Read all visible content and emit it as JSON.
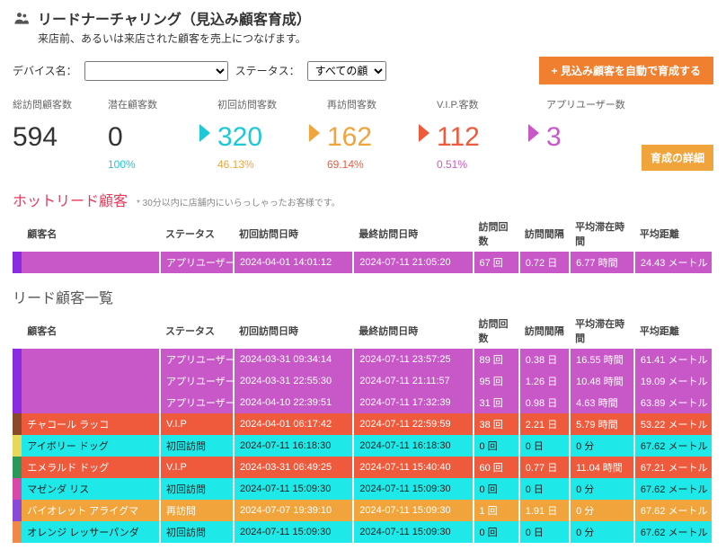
{
  "header": {
    "title": "リードナーチャリング（見込み顧客育成）",
    "subtitle": "来店前、あるいは来店された顧客を売上につなげます。"
  },
  "filters": {
    "device_label": "デバイス名：",
    "status_label": "ステータス：",
    "status_selected": "すべての顧客",
    "cta": "+ 見込み顧客を自動で育成する"
  },
  "funnel": {
    "items": [
      {
        "label": "総訪問顧客数",
        "value": "594",
        "color": "#333",
        "pct": "",
        "pct_color": ""
      },
      {
        "label": "潜在顧客数",
        "value": "0",
        "color": "#333",
        "pct": "100%",
        "pct_color": "#1ec8d8"
      },
      {
        "label": "初回訪問客数",
        "value": "320",
        "color": "#1ec8d8",
        "pct": "46.13%",
        "pct_color": "#f2a43c"
      },
      {
        "label": "再訪問客数",
        "value": "162",
        "color": "#f2a43c",
        "pct": "69.14%",
        "pct_color": "#f05a3c"
      },
      {
        "label": "V.I.P.客数",
        "value": "112",
        "color": "#f05a3c",
        "pct": "0.51%",
        "pct_color": "#c858c8"
      },
      {
        "label": "アプリユーザー数",
        "value": "3",
        "color": "#c858c8",
        "pct": "",
        "pct_color": ""
      }
    ],
    "arrow_colors": [
      "#1ec8d8",
      "#f2a43c",
      "#f05a3c",
      "#c858c8"
    ],
    "detail_btn": "育成の詳細"
  },
  "hot": {
    "title": "ホットリード顧客",
    "note": "* 30分以内に店舗内にいらっしゃったお客様です。",
    "headers": [
      "顧客名",
      "ステータス",
      "初回訪問日時",
      "最終訪問日時",
      "訪問回数",
      "訪問間隔",
      "平均滞在時間",
      "平均距離"
    ],
    "rows": [
      {
        "marker": "#8a2be2",
        "bg": "#c858c8",
        "name": "",
        "status": "アプリユーザー",
        "first": "2024-04-01 14:01:12",
        "last": "2024-07-11 21:05:20",
        "visits": "67 回",
        "interval": "0.72 日",
        "stay": "6.77 時間",
        "dist": "24.43 メートル"
      }
    ]
  },
  "list": {
    "title": "リード顧客一覧",
    "headers": [
      "顧客名",
      "ステータス",
      "初回訪問日時",
      "最終訪問日時",
      "訪問回数",
      "訪問間隔",
      "平均滞在時間",
      "平均距離"
    ],
    "rows": [
      {
        "marker": "#8a2be2",
        "bg": "#c858c8",
        "name": "",
        "status": "アプリユーザー",
        "first": "2024-03-31 09:34:14",
        "last": "2024-07-11 23:57:25",
        "visits": "89 回",
        "interval": "0.38 日",
        "stay": "16.55 時間",
        "dist": "61.41 メートル"
      },
      {
        "marker": "#8a2be2",
        "bg": "#c858c8",
        "name": "",
        "status": "アプリユーザー",
        "first": "2024-03-31 22:55:30",
        "last": "2024-07-11 21:11:57",
        "visits": "95 回",
        "interval": "1.26 日",
        "stay": "10.48 時間",
        "dist": "19.09 メートル"
      },
      {
        "marker": "#8a2be2",
        "bg": "#c858c8",
        "name": "",
        "status": "アプリユーザー",
        "first": "2024-04-10 22:39:51",
        "last": "2024-07-11 17:32:39",
        "visits": "31 回",
        "interval": "0.98 日",
        "stay": "4.63 時間",
        "dist": "63.89 メートル"
      },
      {
        "marker": "#8a4a2a",
        "bg": "#f05a3c",
        "name": "チャコール ラッコ",
        "status": "V.I.P",
        "first": "2024-04-01 06:17:42",
        "last": "2024-07-11 22:59:59",
        "visits": "38 回",
        "interval": "2.21 日",
        "stay": "5.79 時間",
        "dist": "53.22 メートル"
      },
      {
        "marker": "#e8d85a",
        "bg": "#1ee8e8",
        "name": "アイボリー ドッグ",
        "status": "初回訪問",
        "first": "2024-07-11 16:18:30",
        "last": "2024-07-11 16:18:30",
        "visits": "0 回",
        "interval": "0 日",
        "stay": "0 分",
        "dist": "67.62 メートル",
        "text": "#222"
      },
      {
        "marker": "#2a9858",
        "bg": "#f05a3c",
        "name": "エメラルド ドッグ",
        "status": "V.I.P",
        "first": "2024-03-31 06:49:25",
        "last": "2024-07-11 15:40:40",
        "visits": "60 回",
        "interval": "0.77 日",
        "stay": "11.04 時間",
        "dist": "67.21 メートル"
      },
      {
        "marker": "#d848a8",
        "bg": "#1ee8e8",
        "name": "マゼンダ リス",
        "status": "初回訪問",
        "first": "2024-07-11 15:09:30",
        "last": "2024-07-11 15:09:30",
        "visits": "0 回",
        "interval": "0 日",
        "stay": "0 分",
        "dist": "67.62 メートル",
        "text": "#222"
      },
      {
        "marker": "#8848d8",
        "bg": "#f2a43c",
        "name": "バイオレット アライグマ",
        "status": "再訪問",
        "first": "2024-07-07 19:39:10",
        "last": "2024-07-11 15:09:30",
        "visits": "1 回",
        "interval": "1.91 日",
        "stay": "0 分",
        "dist": "67.62 メートル"
      },
      {
        "marker": "#f08848",
        "bg": "#1ee8e8",
        "name": "オレンジ レッサーパンダ",
        "status": "初回訪問",
        "first": "2024-07-11 15:09:30",
        "last": "2024-07-11 15:09:30",
        "visits": "0 回",
        "interval": "0 日",
        "stay": "0 分",
        "dist": "67.62 メートル",
        "text": "#222"
      }
    ]
  }
}
